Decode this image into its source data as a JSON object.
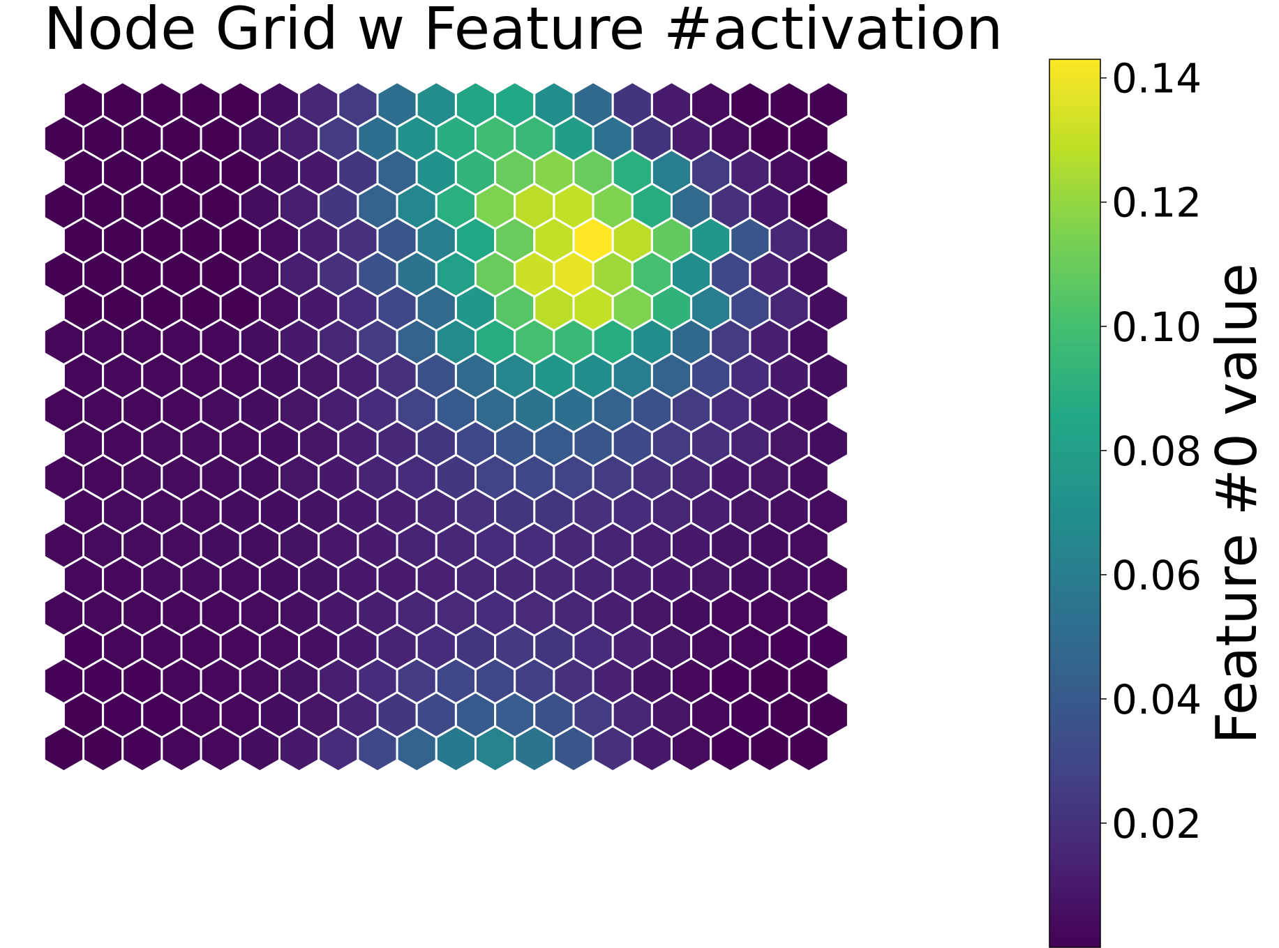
{
  "chart_data": {
    "type": "heatmap",
    "layout": "hexagonal",
    "title": "Node Grid w Feature #activation",
    "rows": 20,
    "cols": 20,
    "colormap": "viridis",
    "colorbar": {
      "label": "Feature #0 value",
      "vmin": 0.0,
      "vmax": 0.143,
      "ticks": [
        0.02,
        0.04,
        0.06,
        0.08,
        0.1,
        0.12,
        0.14
      ],
      "tick_labels": [
        "0.02",
        "0.04",
        "0.06",
        "0.08",
        "0.10",
        "0.12",
        "0.14"
      ]
    },
    "cell_outline_color": "#ffffff",
    "grid": false,
    "values_row_major_top_to_bottom": [
      [
        0.0,
        0.0,
        0.0,
        0.0,
        0.0,
        0.005,
        0.015,
        0.025,
        0.052,
        0.069,
        0.084,
        0.086,
        0.07,
        0.048,
        0.021,
        0.011,
        0.004,
        0.0,
        0.0,
        0.0
      ],
      [
        0.0,
        0.0,
        0.0,
        0.0,
        0.0,
        0.005,
        0.012,
        0.025,
        0.052,
        0.073,
        0.089,
        0.098,
        0.096,
        0.079,
        0.054,
        0.021,
        0.011,
        0.004,
        0.0,
        0.0
      ],
      [
        0.0,
        0.0,
        0.0,
        0.0,
        0.0,
        0.005,
        0.01,
        0.023,
        0.045,
        0.073,
        0.093,
        0.11,
        0.117,
        0.11,
        0.09,
        0.06,
        0.025,
        0.013,
        0.004,
        0.0
      ],
      [
        0.0,
        0.0,
        0.0,
        0.0,
        0.0,
        0.005,
        0.012,
        0.023,
        0.045,
        0.066,
        0.09,
        0.115,
        0.128,
        0.13,
        0.115,
        0.088,
        0.05,
        0.02,
        0.01,
        0.0
      ],
      [
        0.0,
        0.0,
        0.0,
        0.0,
        0.0,
        0.004,
        0.012,
        0.02,
        0.038,
        0.06,
        0.085,
        0.11,
        0.13,
        0.143,
        0.128,
        0.108,
        0.075,
        0.038,
        0.015,
        0.008
      ],
      [
        0.0,
        0.0,
        0.0,
        0.0,
        0.0,
        0.004,
        0.012,
        0.02,
        0.035,
        0.055,
        0.08,
        0.11,
        0.132,
        0.138,
        0.122,
        0.1,
        0.07,
        0.03,
        0.013,
        0.005
      ],
      [
        0.0,
        0.0,
        0.0,
        0.0,
        0.0,
        0.004,
        0.01,
        0.018,
        0.03,
        0.05,
        0.075,
        0.105,
        0.128,
        0.13,
        0.115,
        0.092,
        0.06,
        0.03,
        0.015,
        0.005
      ],
      [
        0.002,
        0.002,
        0.002,
        0.002,
        0.002,
        0.005,
        0.01,
        0.015,
        0.025,
        0.045,
        0.068,
        0.088,
        0.1,
        0.096,
        0.088,
        0.07,
        0.048,
        0.025,
        0.012,
        0.005
      ],
      [
        0.002,
        0.003,
        0.003,
        0.003,
        0.003,
        0.005,
        0.008,
        0.012,
        0.02,
        0.035,
        0.05,
        0.065,
        0.075,
        0.07,
        0.06,
        0.045,
        0.03,
        0.018,
        0.01,
        0.005
      ],
      [
        0.002,
        0.003,
        0.003,
        0.003,
        0.004,
        0.005,
        0.008,
        0.012,
        0.018,
        0.028,
        0.04,
        0.05,
        0.055,
        0.052,
        0.045,
        0.035,
        0.025,
        0.018,
        0.01,
        0.005
      ],
      [
        0.003,
        0.003,
        0.004,
        0.004,
        0.004,
        0.005,
        0.008,
        0.012,
        0.016,
        0.022,
        0.03,
        0.038,
        0.04,
        0.038,
        0.032,
        0.025,
        0.02,
        0.014,
        0.008,
        0.005
      ],
      [
        0.003,
        0.003,
        0.004,
        0.004,
        0.004,
        0.005,
        0.008,
        0.01,
        0.014,
        0.018,
        0.023,
        0.028,
        0.03,
        0.028,
        0.025,
        0.02,
        0.015,
        0.01,
        0.008,
        0.005
      ],
      [
        0.003,
        0.004,
        0.004,
        0.004,
        0.005,
        0.005,
        0.007,
        0.01,
        0.012,
        0.016,
        0.02,
        0.022,
        0.022,
        0.02,
        0.018,
        0.015,
        0.012,
        0.008,
        0.006,
        0.004
      ],
      [
        0.003,
        0.004,
        0.004,
        0.004,
        0.005,
        0.005,
        0.007,
        0.009,
        0.011,
        0.014,
        0.016,
        0.018,
        0.018,
        0.016,
        0.014,
        0.012,
        0.01,
        0.007,
        0.005,
        0.004
      ],
      [
        0.003,
        0.003,
        0.004,
        0.004,
        0.004,
        0.005,
        0.007,
        0.009,
        0.011,
        0.013,
        0.015,
        0.016,
        0.016,
        0.014,
        0.012,
        0.01,
        0.008,
        0.005,
        0.004,
        0.003
      ],
      [
        0.002,
        0.003,
        0.003,
        0.003,
        0.003,
        0.004,
        0.006,
        0.009,
        0.012,
        0.015,
        0.017,
        0.018,
        0.017,
        0.015,
        0.012,
        0.008,
        0.005,
        0.003,
        0.002,
        0.002
      ],
      [
        0.001,
        0.002,
        0.002,
        0.002,
        0.003,
        0.004,
        0.006,
        0.01,
        0.014,
        0.018,
        0.022,
        0.024,
        0.022,
        0.018,
        0.013,
        0.008,
        0.004,
        0.002,
        0.001,
        0.001
      ],
      [
        0.001,
        0.001,
        0.001,
        0.002,
        0.003,
        0.004,
        0.007,
        0.012,
        0.018,
        0.025,
        0.03,
        0.03,
        0.027,
        0.02,
        0.013,
        0.007,
        0.003,
        0.001,
        0.0,
        0.0
      ],
      [
        0.0,
        0.001,
        0.001,
        0.002,
        0.003,
        0.005,
        0.008,
        0.014,
        0.023,
        0.032,
        0.04,
        0.042,
        0.035,
        0.025,
        0.015,
        0.008,
        0.003,
        0.001,
        0.0,
        0.0
      ],
      [
        0.0,
        0.0,
        0.001,
        0.002,
        0.003,
        0.005,
        0.01,
        0.018,
        0.03,
        0.045,
        0.058,
        0.063,
        0.055,
        0.038,
        0.02,
        0.01,
        0.004,
        0.001,
        0.0,
        0.0
      ]
    ]
  }
}
